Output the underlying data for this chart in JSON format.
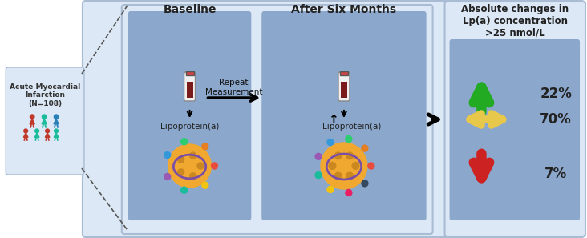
{
  "bg_color": "#dce8f5",
  "outer_bg": "#ffffff",
  "inner_panel_bg": "#8ba7cc",
  "left_box_bg": "#dce8f5",
  "title_left": "Acute Myocardial\nInfarction\n(N=108)",
  "title_baseline": "Baseline",
  "title_after": "After Six Months",
  "title_right": "Absolute changes in\nLp(a) concentration\n>25 nmol/L",
  "middle_label": "Repeat\nMeasurement",
  "lipo_label1": "Lipoprotein(a)",
  "lipo_label2": "Lipoprotein(a)",
  "stats": [
    "22%",
    "70%",
    "7%"
  ],
  "green": "#22aa22",
  "yellow": "#e8c84a",
  "red": "#cc2222",
  "people_colors_back": [
    "#c0392b",
    "#1abc9c",
    "#2980b9"
  ],
  "people_colors_front": [
    "#c0392b",
    "#1abc9c",
    "#c0392b",
    "#1abc9c"
  ],
  "dot_colors1": [
    "#e74c3c",
    "#e67e22",
    "#2ecc71",
    "#3498db",
    "#9b59b6",
    "#1abc9c",
    "#f1c40f"
  ],
  "dot_colors2": [
    "#e74c3c",
    "#e67e22",
    "#2ecc71",
    "#3498db",
    "#9b59b6",
    "#1abc9c",
    "#f1c40f",
    "#e91e63",
    "#34495e"
  ],
  "lipo_yellow": "#f0a830",
  "lipo_dark": "#cc8820",
  "lipo_purple": "#7B4FA6",
  "blood_dark": "#7B1A1A",
  "blood_cap": "#cc4444"
}
